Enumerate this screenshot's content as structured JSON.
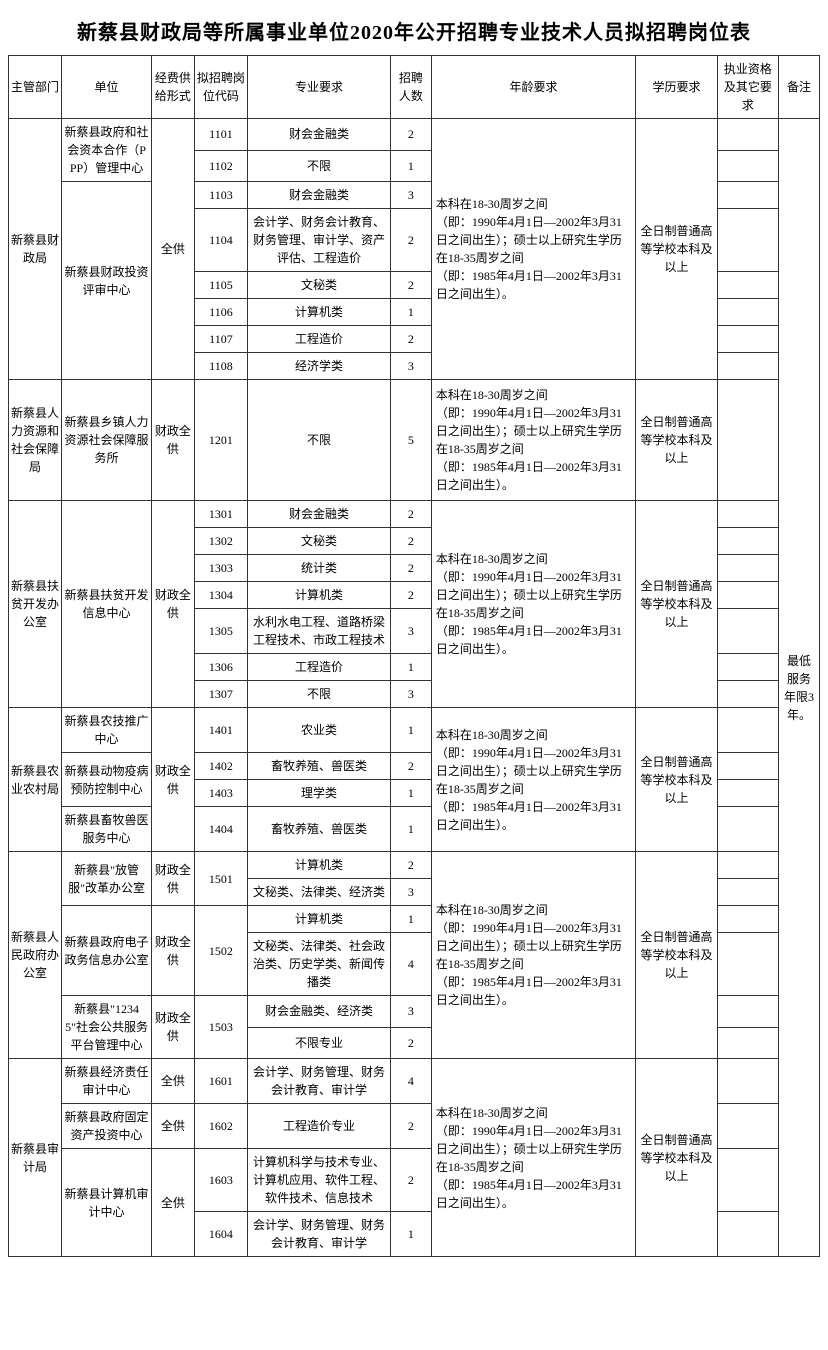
{
  "title": "新蔡县财政局等所属事业单位2020年公开招聘专业技术人员拟招聘岗位表",
  "headers": {
    "dept": "主管部门",
    "unit": "单位",
    "fund": "经费供给形式",
    "code": "拟招聘岗位代码",
    "major": "专业要求",
    "num": "招聘人数",
    "age": "年龄要求",
    "edu": "学历要求",
    "qual": "执业资格及其它要求",
    "note": "备注"
  },
  "age_text": "本科在18-30周岁之间\n（即：1990年4月1日—2002年3月31日之间出生）；硕士以上研究生学历在18-35周岁之间\n（即：1985年4月1日—2002年3月31日之间出生）。",
  "edu_text": "全日制普通高等学校本科及以上",
  "note_text": "最低服务年限3年。",
  "g1": {
    "dept": "新蔡县财政局",
    "unit1": "新蔡县政府和社会资本合作（PPP）管理中心",
    "unit2": "新蔡县财政投资评审中心",
    "fund": "全供",
    "r1101": {
      "code": "1101",
      "major": "财会金融类",
      "n": "2"
    },
    "r1102": {
      "code": "1102",
      "major": "不限",
      "n": "1"
    },
    "r1103": {
      "code": "1103",
      "major": "财会金融类",
      "n": "3"
    },
    "r1104": {
      "code": "1104",
      "major": "会计学、财务会计教育、财务管理、审计学、资产评估、工程造价",
      "n": "2"
    },
    "r1105": {
      "code": "1105",
      "major": "文秘类",
      "n": "2"
    },
    "r1106": {
      "code": "1106",
      "major": "计算机类",
      "n": "1"
    },
    "r1107": {
      "code": "1107",
      "major": "工程造价",
      "n": "2"
    },
    "r1108": {
      "code": "1108",
      "major": "经济学类",
      "n": "3"
    }
  },
  "g2": {
    "dept": "新蔡县人力资源和社会保障局",
    "unit": "新蔡县乡镇人力资源社会保障服务所",
    "fund": "财政全供",
    "r1201": {
      "code": "1201",
      "major": "不限",
      "n": "5"
    }
  },
  "g3": {
    "dept": "新蔡县扶贫开发办公室",
    "unit": "新蔡县扶贫开发信息中心",
    "fund": "财政全供",
    "r1301": {
      "code": "1301",
      "major": "财会金融类",
      "n": "2"
    },
    "r1302": {
      "code": "1302",
      "major": "文秘类",
      "n": "2"
    },
    "r1303": {
      "code": "1303",
      "major": "统计类",
      "n": "2"
    },
    "r1304": {
      "code": "1304",
      "major": "计算机类",
      "n": "2"
    },
    "r1305": {
      "code": "1305",
      "major": "水利水电工程、道路桥梁工程技术、市政工程技术",
      "n": "3"
    },
    "r1306": {
      "code": "1306",
      "major": "工程造价",
      "n": "1"
    },
    "r1307": {
      "code": "1307",
      "major": "不限",
      "n": "3"
    }
  },
  "g4": {
    "dept": "新蔡县农业农村局",
    "unit1": "新蔡县农技推广中心",
    "unit2": "新蔡县动物疫病预防控制中心",
    "unit3": "新蔡县畜牧兽医服务中心",
    "fund": "财政全供",
    "r1401": {
      "code": "1401",
      "major": "农业类",
      "n": "1"
    },
    "r1402": {
      "code": "1402",
      "major": "畜牧养殖、兽医类",
      "n": "2"
    },
    "r1403": {
      "code": "1403",
      "major": "理学类",
      "n": "1"
    },
    "r1404": {
      "code": "1404",
      "major": "畜牧养殖、兽医类",
      "n": "1"
    }
  },
  "g5": {
    "dept": "新蔡县人民政府办公室",
    "unit1": "新蔡县\"放管服\"改革办公室",
    "unit2": "新蔡县政府电子政务信息办公室",
    "unit3": "新蔡县\"12345\"社会公共服务平台管理中心",
    "fund": "财政全供",
    "r1501a": {
      "code": "1501",
      "major": "计算机类",
      "n": "2"
    },
    "r1501b": {
      "major": "文秘类、法律类、经济类",
      "n": "3"
    },
    "r1502a": {
      "code": "1502",
      "major": "计算机类",
      "n": "1"
    },
    "r1502b": {
      "major": "文秘类、法律类、社会政治类、历史学类、新闻传播类",
      "n": "4"
    },
    "r1503a": {
      "code": "1503",
      "major": "财会金融类、经济类",
      "n": "3"
    },
    "r1503b": {
      "major": "不限专业",
      "n": "2"
    }
  },
  "g6": {
    "dept": "新蔡县审计局",
    "unit1": "新蔡县经济责任审计中心",
    "unit2": "新蔡县政府固定资产投资中心",
    "unit3": "新蔡县计算机审计中心",
    "fund": "全供",
    "r1601": {
      "code": "1601",
      "major": "会计学、财务管理、财务会计教育、审计学",
      "n": "4"
    },
    "r1602": {
      "code": "1602",
      "major": "工程造价专业",
      "n": "2"
    },
    "r1603": {
      "code": "1603",
      "major": "计算机科学与技术专业、计算机应用、软件工程、软件技术、信息技术",
      "n": "2"
    },
    "r1604": {
      "code": "1604",
      "major": "会计学、财务管理、财务会计教育、审计学",
      "n": "1"
    }
  }
}
